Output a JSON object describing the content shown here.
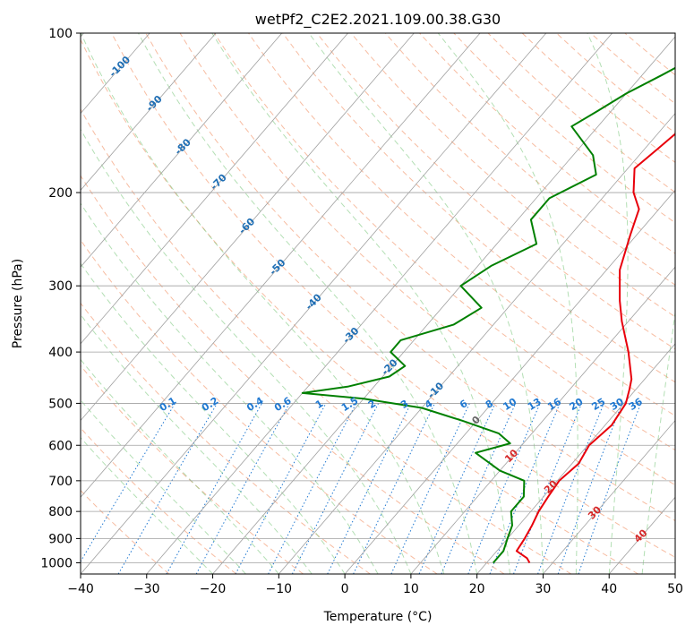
{
  "chart_data": {
    "type": "line",
    "title": "wetPf2_C2E2.2021.109.00.38.G30",
    "xlabel": "Temperature (°C)",
    "ylabel": "Pressure (hPa)",
    "xlim": [
      -40,
      50
    ],
    "ylim": [
      1050,
      100
    ],
    "y_scale": "log",
    "skew_deg_per_log10_hpa": 69,
    "x_ticks": [
      -40,
      -30,
      -20,
      -10,
      0,
      10,
      20,
      30,
      40,
      50
    ],
    "y_ticks": [
      100,
      200,
      300,
      400,
      500,
      600,
      700,
      800,
      900,
      1000
    ],
    "grid": true,
    "colors": {
      "temperature": "#e8000b",
      "dewpoint": "#008000",
      "isotherm": "#a0a0a0",
      "dry_adiabat": "#f4a582",
      "moist_adiabat": "#74c476",
      "mixing_ratio": "#1f78d1",
      "isotherm_label_cold": "#1f6eb4",
      "isotherm_label_warm": "#d62728",
      "isotherm_label_zero": "#666666"
    },
    "isotherm_labels": [
      {
        "t": -100,
        "p": 115
      },
      {
        "t": -90,
        "p": 135
      },
      {
        "t": -80,
        "p": 163
      },
      {
        "t": -70,
        "p": 190
      },
      {
        "t": -60,
        "p": 230
      },
      {
        "t": -50,
        "p": 275
      },
      {
        "t": -40,
        "p": 320
      },
      {
        "t": -30,
        "p": 370
      },
      {
        "t": -20,
        "p": 425
      },
      {
        "t": -10,
        "p": 470
      },
      {
        "t": 0,
        "p": 535
      },
      {
        "t": 10,
        "p": 625
      },
      {
        "t": 20,
        "p": 715
      },
      {
        "t": 30,
        "p": 800
      },
      {
        "t": 40,
        "p": 885
      }
    ],
    "mixing_ratio_labels": [
      "0.1",
      "0.2",
      "0.4",
      "0.6",
      "1",
      "1.5",
      "2",
      "3",
      "4",
      "6",
      "8",
      "10",
      "13",
      "16",
      "20",
      "25",
      "30",
      "36"
    ],
    "series": [
      {
        "key": "temperature",
        "points": [
          [
            26.5,
            1000
          ],
          [
            25.5,
            980
          ],
          [
            23.0,
            950
          ],
          [
            22.6,
            900
          ],
          [
            22.0,
            850
          ],
          [
            21.2,
            800
          ],
          [
            20.7,
            750
          ],
          [
            20.3,
            700
          ],
          [
            21.0,
            650
          ],
          [
            20.2,
            600
          ],
          [
            21.0,
            550
          ],
          [
            20.3,
            500
          ],
          [
            19.0,
            470
          ],
          [
            18.0,
            450
          ],
          [
            14.0,
            400
          ],
          [
            9.0,
            350
          ],
          [
            6.0,
            320
          ],
          [
            2.0,
            280
          ],
          [
            -1.0,
            240
          ],
          [
            -3.0,
            215
          ],
          [
            -6.0,
            200
          ],
          [
            -9.0,
            180
          ],
          [
            -8.0,
            165
          ],
          [
            -7.0,
            150
          ],
          [
            -8.0,
            135
          ],
          [
            -9.0,
            120
          ],
          [
            -9.0,
            110
          ],
          [
            -8.0,
            100
          ]
        ]
      },
      {
        "key": "dewpoint",
        "points": [
          [
            21.0,
            1000
          ],
          [
            21.0,
            950
          ],
          [
            20.0,
            900
          ],
          [
            19.0,
            850
          ],
          [
            17.0,
            800
          ],
          [
            17.0,
            750
          ],
          [
            15.0,
            700
          ],
          [
            10.0,
            670
          ],
          [
            4.0,
            620
          ],
          [
            8.0,
            595
          ],
          [
            5.0,
            570
          ],
          [
            -2.0,
            540
          ],
          [
            -10.0,
            510
          ],
          [
            -20.0,
            490
          ],
          [
            -30.0,
            478
          ],
          [
            -24.0,
            465
          ],
          [
            -19.0,
            445
          ],
          [
            -18.0,
            425
          ],
          [
            -22.0,
            400
          ],
          [
            -22.0,
            380
          ],
          [
            -16.0,
            355
          ],
          [
            -14.0,
            330
          ],
          [
            -20.0,
            300
          ],
          [
            -18.0,
            275
          ],
          [
            -14.0,
            250
          ],
          [
            -18.0,
            225
          ],
          [
            -18.0,
            205
          ],
          [
            -14.0,
            185
          ],
          [
            -17.0,
            170
          ],
          [
            -24.0,
            150
          ],
          [
            -22.0,
            140
          ],
          [
            -20.0,
            130
          ],
          [
            -17.0,
            120
          ],
          [
            -14.0,
            110
          ],
          [
            -12.0,
            100
          ]
        ]
      }
    ]
  }
}
